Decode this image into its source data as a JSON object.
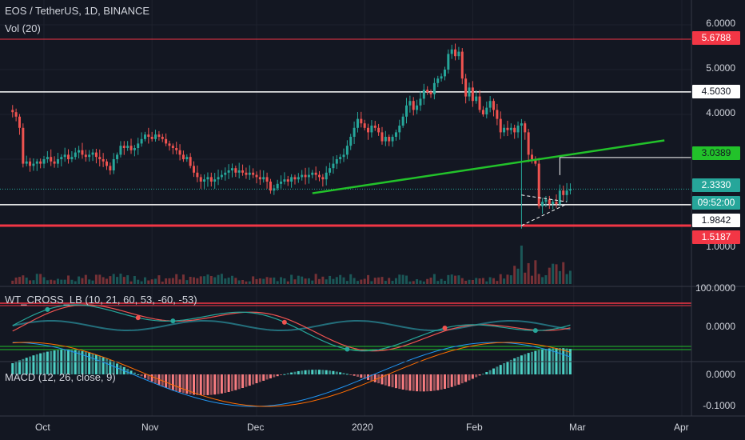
{
  "header": {
    "symbol": "EOS / TetherUS, 1D, BINANCE",
    "volume": "Vol (20)",
    "wt_cross": "WT_CROSS_LB (10, 21, 60, 53, -60, -53)",
    "macd": "MACD (12, 26, close, 9)"
  },
  "colors": {
    "background": "#131722",
    "up": "#26a69a",
    "down": "#ef5350",
    "trendline": "#22c22a",
    "resistance": "#f23645",
    "level": "#ffffff",
    "cyan_line": "#2fa8b8"
  },
  "price_axis": {
    "ticks": [
      "6.0000",
      "5.0000",
      "4.0000",
      "1.0000"
    ],
    "tags": {
      "t1": "5.6788",
      "t2": "4.5030",
      "t3": "3.0389",
      "t4": "2.3330",
      "t5": "09:52:00",
      "t6": "1.9842",
      "t7": "1.5187"
    }
  },
  "wt_axis": {
    "ticks": [
      "100.0000",
      "0.0000"
    ]
  },
  "macd_axis": {
    "ticks": [
      "0.0000",
      "-0.1000"
    ]
  },
  "x_axis": {
    "labels": [
      "Oct",
      "Nov",
      "Dec",
      "2020",
      "Feb",
      "Mar",
      "Apr"
    ]
  },
  "chart_data": {
    "type": "candlestick",
    "title": "EOS / TetherUS, 1D, BINANCE",
    "start_date": "2019-09-22",
    "interval": "1D",
    "close": [
      4.05,
      3.95,
      3.7,
      2.9,
      2.95,
      2.85,
      2.9,
      2.95,
      2.9,
      3.0,
      3.05,
      2.95,
      2.9,
      3.0,
      3.05,
      3.1,
      3.0,
      3.05,
      3.15,
      3.2,
      3.1,
      3.05,
      3.1,
      3.15,
      3.05,
      3.0,
      2.95,
      2.85,
      2.75,
      3.0,
      3.1,
      3.3,
      3.25,
      3.3,
      3.2,
      3.25,
      3.35,
      3.45,
      3.55,
      3.5,
      3.45,
      3.55,
      3.5,
      3.45,
      3.35,
      3.3,
      3.25,
      3.2,
      3.1,
      3.0,
      3.05,
      2.85,
      2.7,
      2.6,
      2.5,
      2.55,
      2.6,
      2.5,
      2.55,
      2.6,
      2.65,
      2.7,
      2.75,
      2.8,
      2.7,
      2.75,
      2.7,
      2.65,
      2.7,
      2.65,
      2.6,
      2.55,
      2.6,
      2.5,
      2.3,
      2.35,
      2.45,
      2.5,
      2.55,
      2.5,
      2.6,
      2.55,
      2.6,
      2.65,
      2.6,
      2.65,
      2.7,
      2.65,
      2.6,
      2.55,
      2.7,
      2.8,
      2.9,
      3.0,
      3.05,
      3.1,
      3.3,
      3.5,
      3.7,
      3.9,
      3.8,
      3.7,
      3.6,
      3.75,
      3.7,
      3.6,
      3.4,
      3.5,
      3.4,
      3.5,
      3.6,
      3.75,
      3.95,
      4.2,
      4.3,
      4.1,
      4.2,
      4.35,
      4.55,
      4.5,
      4.45,
      4.7,
      4.8,
      4.85,
      5.0,
      5.35,
      5.45,
      5.3,
      5.4,
      4.8,
      4.4,
      4.6,
      4.3,
      4.4,
      4.1,
      4.0,
      4.15,
      4.3,
      4.1,
      3.9,
      3.6,
      3.7,
      3.65,
      3.7,
      3.6,
      3.75,
      3.8,
      3.6,
      3.1,
      3.0,
      2.9,
      1.95,
      2.05,
      2.1,
      2.0,
      2.05,
      2.0,
      2.3,
      2.2,
      2.3,
      2.33
    ],
    "key_levels": [
      5.6788,
      4.503,
      3.0389,
      2.333,
      1.9842,
      1.5187
    ],
    "trendline": [
      {
        "date": "2019-12-17",
        "price": 2.24
      },
      {
        "date": "2020-03-27",
        "price": 3.42
      }
    ],
    "last_price": 2.333,
    "countdown": "09:52:00",
    "price_axis_ticks": [
      6.0,
      5.0,
      4.0,
      1.0
    ],
    "indicators": [
      "Vol (20)",
      "WT_CROSS_LB (10, 21, 60, 53, -60, -53)",
      "MACD (12, 26, close, 9)"
    ],
    "wt_ticks": [
      100.0,
      0.0
    ],
    "macd_ticks": [
      0.0,
      -0.1
    ],
    "x_tick_labels": [
      "Oct",
      "Nov",
      "Dec",
      "2020",
      "Feb",
      "Mar",
      "Apr"
    ]
  }
}
